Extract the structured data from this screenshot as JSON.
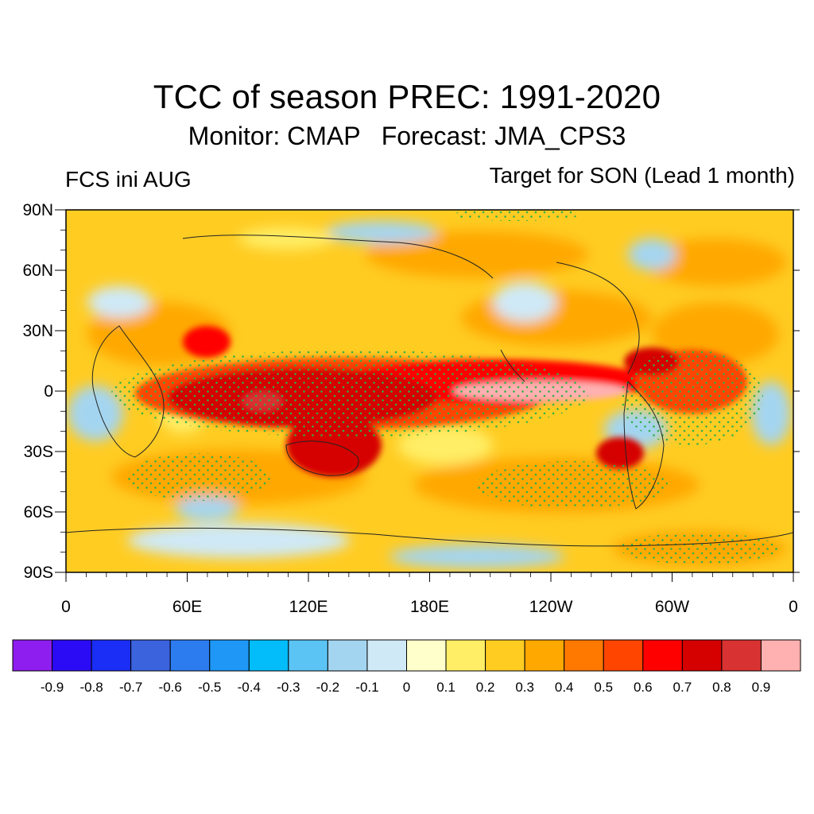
{
  "header": {
    "title": "TCC of season PREC: 1991-2020",
    "subtitle": "Monitor: CMAP   Forecast: JMA_CPS3",
    "left_label": "FCS ini AUG",
    "right_label": "Target for SON (Lead 1 month)"
  },
  "map": {
    "lat_labels": [
      "90N",
      "60N",
      "30N",
      "0",
      "30S",
      "60S",
      "90S"
    ],
    "lon_labels": [
      "0",
      "60E",
      "120E",
      "180E",
      "120W",
      "60W",
      "0"
    ]
  },
  "colorbar": {
    "colors": [
      "#8e1ef0",
      "#2b0bf5",
      "#1a2ef5",
      "#3b63de",
      "#2c7cf0",
      "#1e97f7",
      "#03bdfa",
      "#5bc4f5",
      "#a4d5f0",
      "#cfe9f7",
      "#ffffcc",
      "#ffee66",
      "#ffcc22",
      "#ffa800",
      "#ff7800",
      "#ff4500",
      "#ff0000",
      "#d50000",
      "#d83232",
      "#ffb0b0"
    ],
    "labels": [
      "-0.9",
      "-0.8",
      "-0.7",
      "-0.6",
      "-0.5",
      "-0.4",
      "-0.3",
      "-0.2",
      "-0.1",
      "0",
      "0.1",
      "0.2",
      "0.3",
      "0.4",
      "0.5",
      "0.6",
      "0.7",
      "0.8",
      "0.9"
    ]
  }
}
